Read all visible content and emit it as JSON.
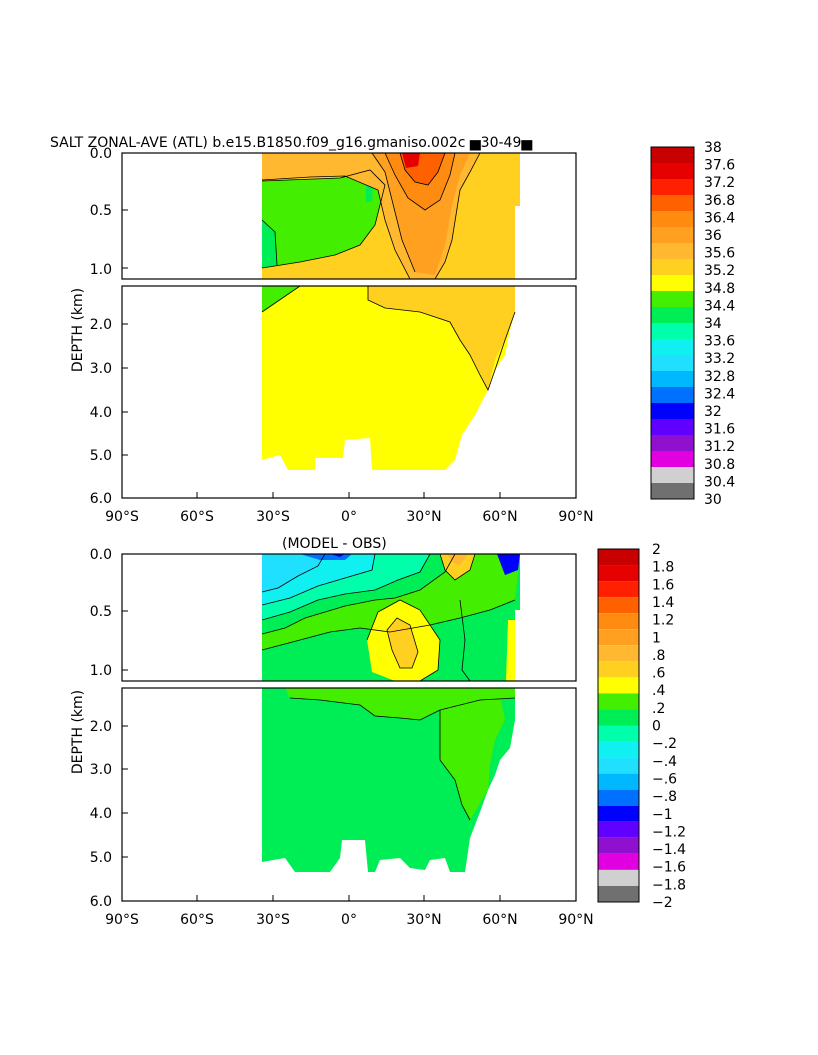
{
  "figure": {
    "title": "SALT ZONAL-AVE (ATL) b.e15.B1850.f09_g16.gmaniso.002c ▅30-49▅",
    "diff_title": "(MODEL - OBS)",
    "ylabel": "DEPTH (km)"
  },
  "chart_data": [
    {
      "type": "heatmap",
      "title": "SALT ZONAL-AVE (ATL) b.e15.B1850.f09_g16.gmaniso.002c ▅30-49▅",
      "xlabel": "",
      "ylabel": "DEPTH (km)",
      "x_ticks": [
        "90°S",
        "60°S",
        "30°S",
        "0°",
        "30°N",
        "60°N",
        "90°N"
      ],
      "x_tick_values": [
        -90,
        -60,
        -30,
        0,
        30,
        60,
        90
      ],
      "y_ticks_upper": [
        "0.0",
        "0.5",
        "1.0"
      ],
      "y_ticks_lower": [
        "2.0",
        "3.0",
        "4.0",
        "5.0",
        "6.0"
      ],
      "xlim": [
        -90,
        90
      ],
      "ylim_upper": [
        0,
        1.15
      ],
      "ylim_lower": [
        1.15,
        6.0
      ],
      "colorbar": {
        "labels": [
          "38",
          "37.6",
          "37.2",
          "36.8",
          "36.4",
          "36",
          "35.6",
          "35.2",
          "34.8",
          "34.4",
          "34",
          "33.6",
          "33.2",
          "32.8",
          "32.4",
          "32",
          "31.6",
          "31.2",
          "30.8",
          "30.4",
          "30"
        ],
        "colors": [
          "#c80000",
          "#e60000",
          "#ff2000",
          "#ff6000",
          "#ff8c10",
          "#ffa020",
          "#ffb830",
          "#ffd020",
          "#ffff00",
          "#44ee00",
          "#00ee55",
          "#00ffaa",
          "#10f0f0",
          "#20e0ff",
          "#00b8ff",
          "#0070ff",
          "#0000ff",
          "#6000ff",
          "#9010d0",
          "#e000e0",
          "#d0d0d0",
          "#707070"
        ]
      },
      "approx_values": [
        {
          "lat": -20,
          "depth": 0.5,
          "salinity": 34.6
        },
        {
          "lat": 25,
          "depth": 0.1,
          "salinity": 37.4
        },
        {
          "lat": 30,
          "depth": 0.6,
          "salinity": 35.9
        },
        {
          "lat": 55,
          "depth": 0.5,
          "salinity": 35.3
        },
        {
          "lat": 0,
          "depth": 3.0,
          "salinity": 34.9
        },
        {
          "lat": 50,
          "depth": 2.5,
          "salinity": 35.1
        }
      ]
    },
    {
      "type": "heatmap",
      "title": "(MODEL - OBS)",
      "xlabel": "",
      "ylabel": "DEPTH (km)",
      "x_ticks": [
        "90°S",
        "60°S",
        "30°S",
        "0°",
        "30°N",
        "60°N",
        "90°N"
      ],
      "x_tick_values": [
        -90,
        -60,
        -30,
        0,
        30,
        60,
        90
      ],
      "y_ticks_upper": [
        "0.0",
        "0.5",
        "1.0"
      ],
      "y_ticks_lower": [
        "2.0",
        "3.0",
        "4.0",
        "5.0",
        "6.0"
      ],
      "xlim": [
        -90,
        90
      ],
      "ylim_upper": [
        0,
        1.15
      ],
      "ylim_lower": [
        1.15,
        6.0
      ],
      "colorbar": {
        "labels": [
          "2",
          "1.8",
          "1.6",
          "1.4",
          "1.2",
          "1",
          ".8",
          ".6",
          ".4",
          ".2",
          "0",
          "−.2",
          "−.4",
          "−.6",
          "−.8",
          "−1",
          "−1.2",
          "−1.4",
          "−1.6",
          "−1.8",
          "−2"
        ],
        "colors": [
          "#c80000",
          "#e60000",
          "#ff2000",
          "#ff6000",
          "#ff8c10",
          "#ffa020",
          "#ffb830",
          "#ffd020",
          "#ffff00",
          "#44ee00",
          "#00ee55",
          "#00ffaa",
          "#10f0f0",
          "#20e0ff",
          "#00b8ff",
          "#0070ff",
          "#0000ff",
          "#6000ff",
          "#9010d0",
          "#e000e0",
          "#d0d0d0",
          "#707070"
        ]
      },
      "approx_values": [
        {
          "lat": -25,
          "depth": 0.3,
          "difference": -0.5
        },
        {
          "lat": 0,
          "depth": 0.3,
          "difference": -0.2
        },
        {
          "lat": 20,
          "depth": 0.8,
          "difference": 0.7
        },
        {
          "lat": 10,
          "depth": 1.05,
          "difference": 0.3
        },
        {
          "lat": 0,
          "depth": 3.0,
          "difference": 0.1
        },
        {
          "lat": 60,
          "depth": 0.8,
          "difference": 0.5
        }
      ]
    }
  ]
}
